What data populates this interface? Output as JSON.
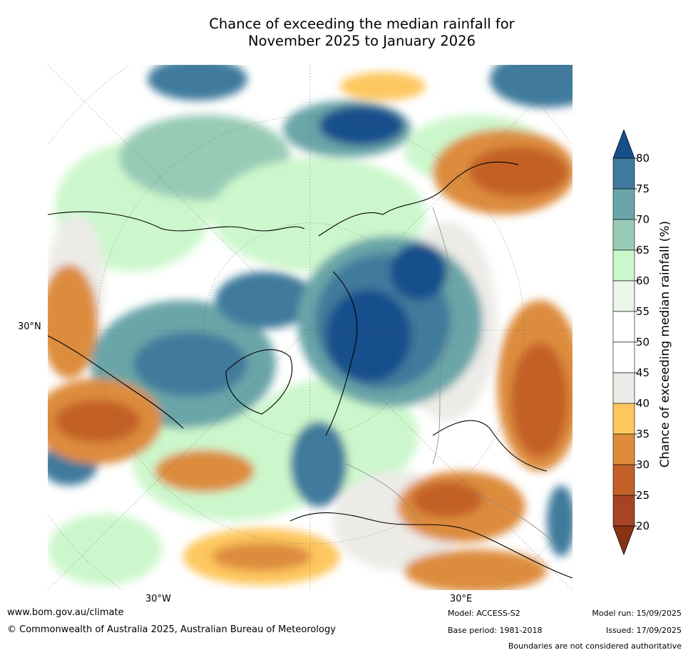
{
  "title_line1": "Chance of exceeding the median rainfall for",
  "title_line2": "November 2025 to January 2026",
  "map": {
    "lat_label": "30°N",
    "lon_label_west": "30°W",
    "lon_label_east": "30°E"
  },
  "colorbar": {
    "label": "Chance of exceeding median rainfall (%)",
    "ticks": [
      "80",
      "75",
      "70",
      "65",
      "60",
      "55",
      "50",
      "45",
      "40",
      "35",
      "30",
      "25",
      "20"
    ],
    "colors": [
      "#16508c",
      "#3f7a9c",
      "#6aa5a8",
      "#98cbb6",
      "#ccf7cc",
      "#ebf5ea",
      "#ffffff",
      "#ffffff",
      "#ecebe7",
      "#fdc75f",
      "#dd8c3c",
      "#c36027",
      "#a64425",
      "#8a3216"
    ]
  },
  "footer": {
    "website": "www.bom.gov.au/climate",
    "copyright": "© Commonwealth of Australia 2025, Australian Bureau of Meteorology",
    "model": "Model: ACCESS-S2",
    "base_period": "Base period: 1981-2018",
    "model_run": "Model run: 15/09/2025",
    "issued": "Issued: 17/09/2025",
    "disclaimer": "Boundaries are not considered authoritative"
  }
}
